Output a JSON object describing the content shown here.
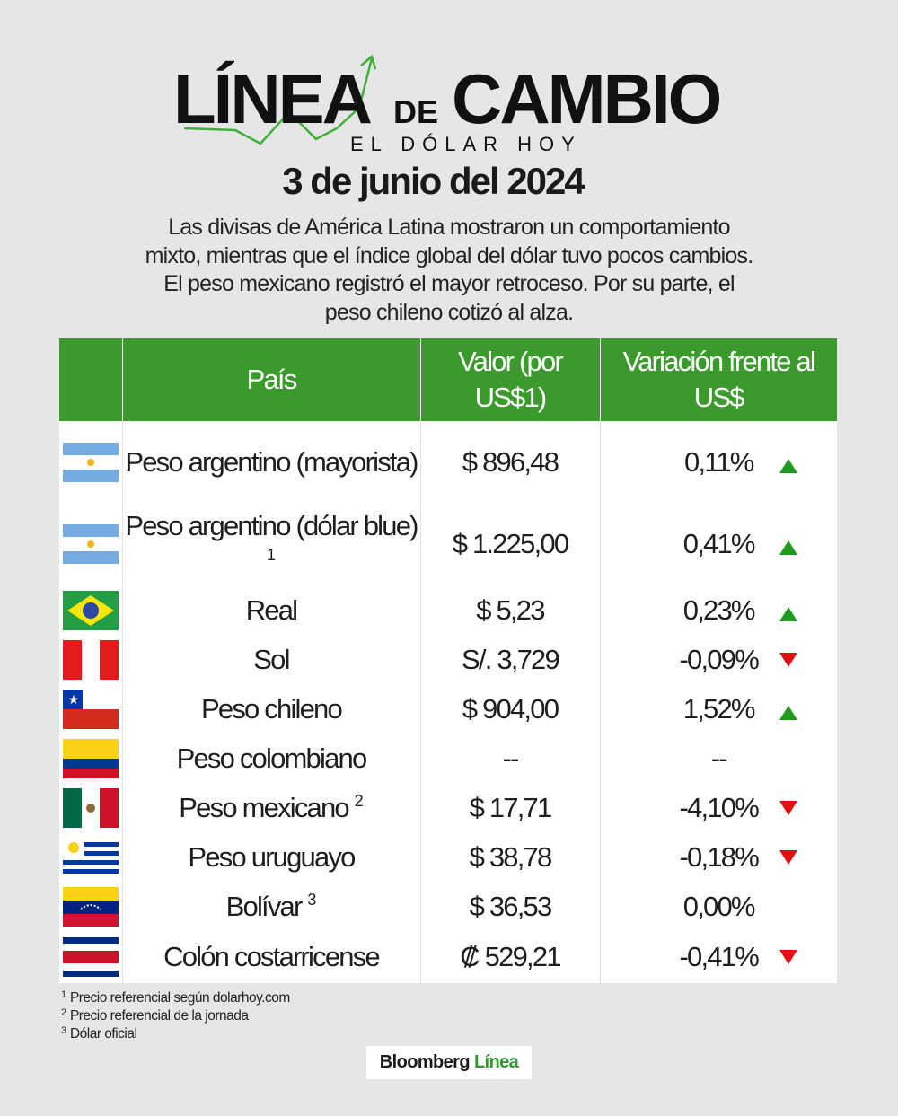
{
  "header": {
    "logo_word1": "LÍNEA",
    "logo_word2": "DE",
    "logo_word3": "CAMBIO",
    "logo_tagline": "EL DÓLAR HOY",
    "date": "3 de junio del 2024",
    "description": "Las divisas de América Latina mostraron un comportamiento mixto, mientras que el índice global del dólar tuvo pocos cambios. El peso mexicano registró el mayor retroceso. Por su parte, el peso chileno cotizó al alza."
  },
  "table": {
    "columns": [
      "País",
      "Valor (por US$1)",
      "Variación frente al US$"
    ],
    "rows": [
      {
        "country": "Peso argentino (mayorista)",
        "value": "$ 896,48",
        "variation": "0,11%",
        "trend": "up"
      },
      {
        "country": "Peso argentino (dólar blue)",
        "note": "1",
        "value": "$ 1.225,00",
        "variation": "0,41%",
        "trend": "up"
      },
      {
        "country": "Real",
        "value": "$ 5,23",
        "variation": "0,23%",
        "trend": "up"
      },
      {
        "country": "Sol",
        "value": "S/. 3,729",
        "variation": "-0,09%",
        "trend": "down"
      },
      {
        "country": "Peso chileno",
        "value": "$ 904,00",
        "variation": "1,52%",
        "trend": "up"
      },
      {
        "country": "Peso colombiano",
        "value": "--",
        "variation": "--"
      },
      {
        "country": "Peso mexicano",
        "note": "2",
        "value": "$ 17,71",
        "variation": "-4,10%",
        "trend": "down"
      },
      {
        "country": "Peso uruguayo",
        "value": "$ 38,78",
        "variation": "-0,18%",
        "trend": "down"
      },
      {
        "country": "Bolívar",
        "note": "3",
        "value": "$ 36,53",
        "variation": "0,00%"
      },
      {
        "country": "Colón costarricense",
        "value": "₡ 529,21",
        "variation": "-0,41%",
        "trend": "down"
      }
    ]
  },
  "footnotes": [
    {
      "mark": "1",
      "text": "Precio referencial según dolarhoy.com"
    },
    {
      "mark": "2",
      "text": "Precio referencial de la jornada"
    },
    {
      "mark": "3",
      "text": "Dólar oficial"
    }
  ],
  "brand": {
    "name": "Bloomberg",
    "name2": "Línea"
  }
}
